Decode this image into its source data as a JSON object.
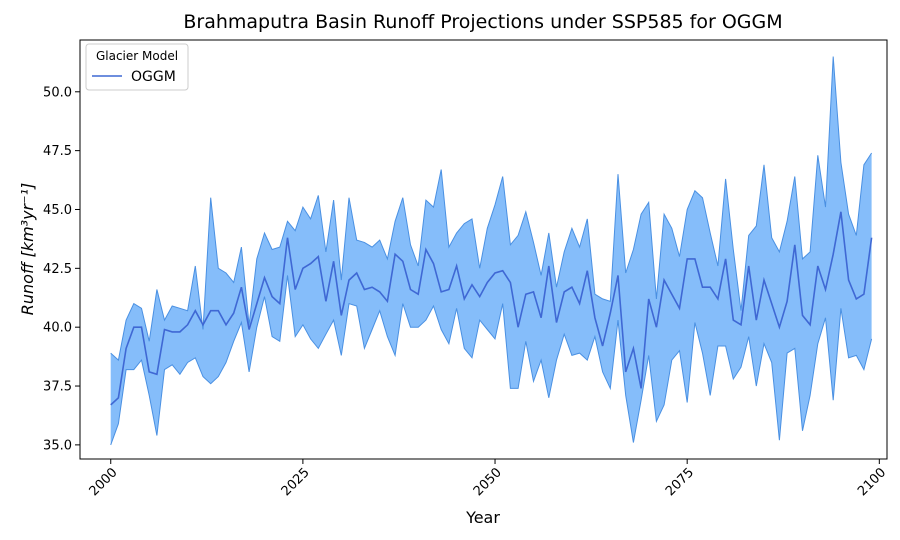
{
  "chart_data": {
    "type": "line",
    "title": "Brahmaputra Basin Runoff Projections under SSP585 for OGGM",
    "xlabel": "Year",
    "ylabel": "Runoff [km³yr⁻¹]",
    "xlim": [
      1996,
      2101
    ],
    "ylim": [
      34.4,
      52.2
    ],
    "xticks": [
      2000,
      2025,
      2050,
      2075,
      2100
    ],
    "yticks": [
      35.0,
      37.5,
      40.0,
      42.5,
      45.0,
      47.5,
      50.0
    ],
    "grid": false,
    "legend": {
      "title": "Glacier Model",
      "placement": "top-left"
    },
    "x": [
      2000,
      2001,
      2002,
      2003,
      2004,
      2005,
      2006,
      2007,
      2008,
      2009,
      2010,
      2011,
      2012,
      2013,
      2014,
      2015,
      2016,
      2017,
      2018,
      2019,
      2020,
      2021,
      2022,
      2023,
      2024,
      2025,
      2026,
      2027,
      2028,
      2029,
      2030,
      2031,
      2032,
      2033,
      2034,
      2035,
      2036,
      2037,
      2038,
      2039,
      2040,
      2041,
      2042,
      2043,
      2044,
      2045,
      2046,
      2047,
      2048,
      2049,
      2050,
      2051,
      2052,
      2053,
      2054,
      2055,
      2056,
      2057,
      2058,
      2059,
      2060,
      2061,
      2062,
      2063,
      2064,
      2065,
      2066,
      2067,
      2068,
      2069,
      2070,
      2071,
      2072,
      2073,
      2074,
      2075,
      2076,
      2077,
      2078,
      2079,
      2080,
      2081,
      2082,
      2083,
      2084,
      2085,
      2086,
      2087,
      2088,
      2089,
      2090,
      2091,
      2092,
      2093,
      2094,
      2095,
      2096,
      2097,
      2098,
      2099
    ],
    "series": [
      {
        "name": "OGGM",
        "color": "#3f68d4",
        "band_color": "#85bdfa",
        "band_edge_color": "#4a90e2",
        "values": [
          36.7,
          37.0,
          39.1,
          40.0,
          40.0,
          38.1,
          38.0,
          39.9,
          39.8,
          39.8,
          40.1,
          40.7,
          40.1,
          40.7,
          40.7,
          40.1,
          40.6,
          41.7,
          39.9,
          41.0,
          42.1,
          41.3,
          41.0,
          43.8,
          41.6,
          42.5,
          42.7,
          43.0,
          41.1,
          42.8,
          40.5,
          42.0,
          42.3,
          41.6,
          41.7,
          41.5,
          41.1,
          43.1,
          42.8,
          41.6,
          41.4,
          43.3,
          42.7,
          41.5,
          41.6,
          42.6,
          41.2,
          41.8,
          41.3,
          41.9,
          42.3,
          42.4,
          41.9,
          40.0,
          41.4,
          41.5,
          40.4,
          42.6,
          40.2,
          41.5,
          41.7,
          41.0,
          42.4,
          40.4,
          39.2,
          40.6,
          42.2,
          38.1,
          39.1,
          37.4,
          41.2,
          40.0,
          42.0,
          41.4,
          40.8,
          42.9,
          42.9,
          41.7,
          41.7,
          41.2,
          42.9,
          40.3,
          40.1,
          42.6,
          40.3,
          42.0,
          41.0,
          40.0,
          41.1,
          43.5,
          40.5,
          40.1,
          42.6,
          41.6,
          43.1,
          44.9,
          42.0,
          41.2,
          41.4,
          43.8
        ],
        "upper": [
          38.9,
          38.6,
          40.3,
          41.0,
          40.8,
          39.4,
          41.6,
          40.3,
          40.9,
          40.8,
          40.7,
          42.6,
          39.9,
          45.5,
          42.5,
          42.3,
          41.9,
          43.4,
          40.1,
          42.9,
          44.0,
          43.3,
          43.4,
          44.5,
          44.1,
          45.1,
          44.6,
          45.6,
          43.2,
          45.4,
          42.0,
          45.5,
          43.7,
          43.6,
          43.4,
          43.7,
          42.9,
          44.5,
          45.5,
          43.5,
          42.6,
          45.4,
          45.1,
          46.7,
          43.4,
          44.0,
          44.4,
          44.6,
          42.5,
          44.2,
          45.2,
          46.4,
          43.5,
          43.9,
          44.9,
          43.6,
          42.2,
          44.0,
          41.7,
          43.2,
          44.2,
          43.4,
          44.6,
          41.4,
          41.2,
          41.1,
          46.5,
          42.3,
          43.3,
          44.8,
          45.3,
          41.2,
          44.8,
          44.2,
          43.0,
          45.0,
          45.8,
          45.5,
          44.0,
          42.6,
          46.3,
          43.3,
          40.7,
          43.9,
          44.3,
          46.9,
          43.8,
          43.2,
          44.5,
          46.4,
          42.9,
          43.2,
          47.3,
          45.1,
          51.5,
          47.0,
          44.8,
          43.9,
          46.9,
          47.4
        ],
        "lower": [
          35.0,
          35.9,
          38.2,
          38.2,
          38.6,
          37.1,
          35.4,
          38.2,
          38.4,
          38.0,
          38.5,
          38.7,
          37.9,
          37.6,
          37.9,
          38.5,
          39.4,
          40.2,
          38.1,
          40.0,
          41.3,
          39.6,
          39.4,
          42.2,
          39.6,
          40.1,
          39.5,
          39.1,
          39.7,
          40.3,
          38.8,
          41.0,
          40.9,
          39.1,
          39.9,
          40.7,
          39.6,
          38.8,
          41.0,
          40.0,
          40.0,
          40.3,
          40.9,
          39.9,
          39.3,
          40.8,
          39.1,
          38.7,
          40.3,
          39.9,
          39.5,
          41.0,
          37.4,
          37.4,
          39.4,
          37.7,
          38.6,
          37.0,
          38.6,
          39.7,
          38.8,
          38.9,
          38.6,
          39.6,
          38.1,
          37.4,
          40.3,
          37.1,
          35.1,
          36.9,
          38.8,
          36.0,
          36.7,
          38.6,
          39.0,
          36.8,
          40.2,
          38.9,
          37.1,
          39.2,
          39.2,
          37.8,
          38.3,
          39.6,
          37.5,
          39.3,
          38.5,
          35.2,
          38.9,
          39.1,
          35.6,
          37.1,
          39.3,
          40.4,
          36.9,
          40.8,
          38.7,
          38.8,
          38.2,
          39.5
        ]
      }
    ]
  }
}
